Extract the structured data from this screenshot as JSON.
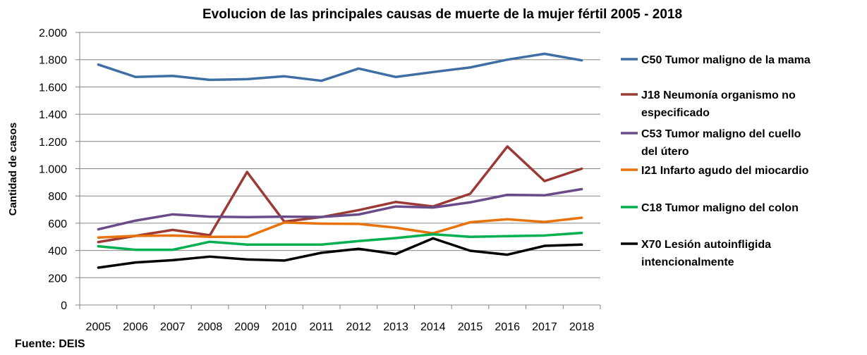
{
  "chart_data": {
    "type": "line",
    "title": "Evolucion de las principales causas de muerte de la mujer fértil 2005 - 2018",
    "xlabel": "",
    "ylabel": "Cantidad de casos",
    "ylim": [
      0,
      2000
    ],
    "yticks": [
      0,
      200,
      400,
      600,
      800,
      1000,
      1200,
      1400,
      1600,
      1800,
      2000
    ],
    "ytick_labels": [
      "0",
      "200",
      "400",
      "600",
      "800",
      "1.000",
      "1.200",
      "1.400",
      "1.600",
      "1.800",
      "2.000"
    ],
    "grid": true,
    "legend_position": "right",
    "categories": [
      "2005",
      "2006",
      "2007",
      "2008",
      "2009",
      "2010",
      "2011",
      "2012",
      "2013",
      "2014",
      "2015",
      "2016",
      "2017",
      "2018"
    ],
    "series": [
      {
        "name": "C50 Tumor maligno de la mama",
        "legend_lines": [
          "C50 Tumor maligno de la mama"
        ],
        "color": "#3f6ea5",
        "values": [
          1764,
          1673,
          1681,
          1652,
          1657,
          1678,
          1645,
          1735,
          1673,
          1709,
          1743,
          1800,
          1843,
          1795
        ]
      },
      {
        "name": "J18 Neumonía organismo no especificado",
        "legend_lines": [
          "J18 Neumonía organismo no",
          "especificado"
        ],
        "color": "#9b3a35",
        "values": [
          462,
          507,
          551,
          512,
          976,
          612,
          645,
          696,
          756,
          723,
          816,
          1163,
          909,
          1000
        ]
      },
      {
        "name": "C53 Tumor maligno del cuello del útero",
        "legend_lines": [
          "C53 Tumor maligno del cuello",
          "del útero"
        ],
        "color": "#6a4b8a",
        "values": [
          555,
          619,
          665,
          648,
          645,
          648,
          646,
          664,
          723,
          715,
          753,
          808,
          805,
          850
        ]
      },
      {
        "name": "I21 Infarto agudo del miocardio",
        "legend_lines": [
          "I21 Infarto agudo del miocardio"
        ],
        "color": "#e8720c",
        "values": [
          495,
          507,
          510,
          500,
          500,
          605,
          597,
          595,
          567,
          526,
          607,
          629,
          609,
          640
        ]
      },
      {
        "name": "C18 Tumor maligno del colon",
        "legend_lines": [
          "C18 Tumor maligno del colon"
        ],
        "color": "#00b050",
        "values": [
          431,
          405,
          405,
          464,
          443,
          443,
          443,
          469,
          491,
          519,
          500,
          505,
          510,
          529
        ]
      },
      {
        "name": "X70 Lesión autoinfligida intencionalmente",
        "legend_lines": [
          "X70 Lesión autoinfligida",
          "intencionalmente"
        ],
        "color": "#000000",
        "values": [
          274,
          312,
          329,
          355,
          334,
          326,
          383,
          412,
          374,
          489,
          398,
          369,
          434,
          443
        ]
      }
    ]
  },
  "source": "Fuente: DEIS"
}
